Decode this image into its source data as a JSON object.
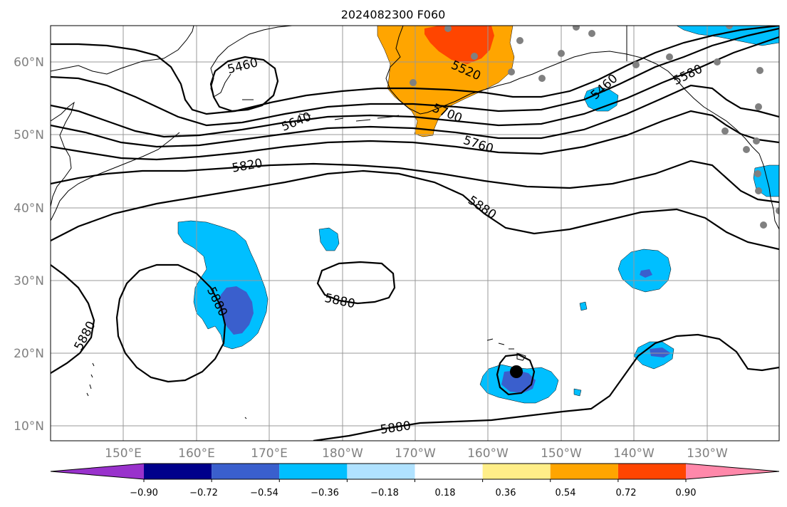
{
  "title": "2024082300 F060",
  "map": {
    "lat_labels": [
      "60°N",
      "50°N",
      "40°N",
      "30°N",
      "20°N",
      "10°N"
    ],
    "lon_labels": [
      "150°E",
      "160°E",
      "170°E",
      "180°W",
      "170°W",
      "160°W",
      "150°W",
      "140°W",
      "130°W"
    ],
    "contour_labels": [
      "5460",
      "5520",
      "5640",
      "5700",
      "5760",
      "5820",
      "5880",
      "5880",
      "5880",
      "5880",
      "5880",
      "5460",
      "5580"
    ],
    "gridline_color": "#999999",
    "station_color": "#808080"
  },
  "colorbar": {
    "ticks": [
      "−0.90",
      "−0.72",
      "−0.54",
      "−0.36",
      "−0.18",
      "0.18",
      "0.36",
      "0.54",
      "0.72",
      "0.90"
    ],
    "colors": [
      "#9932cc",
      "#00008b",
      "#3a5fcd",
      "#00bfff",
      "#b0e2ff",
      "#ffffff",
      "#ffee88",
      "#ffa500",
      "#ff4500",
      "#b22222",
      "#ff88aa"
    ]
  },
  "anomaly_colors": {
    "light_blue": "#00bfff",
    "dark_blue": "#3a5fcd",
    "orange": "#ffa500",
    "red_orange": "#ff4500"
  }
}
